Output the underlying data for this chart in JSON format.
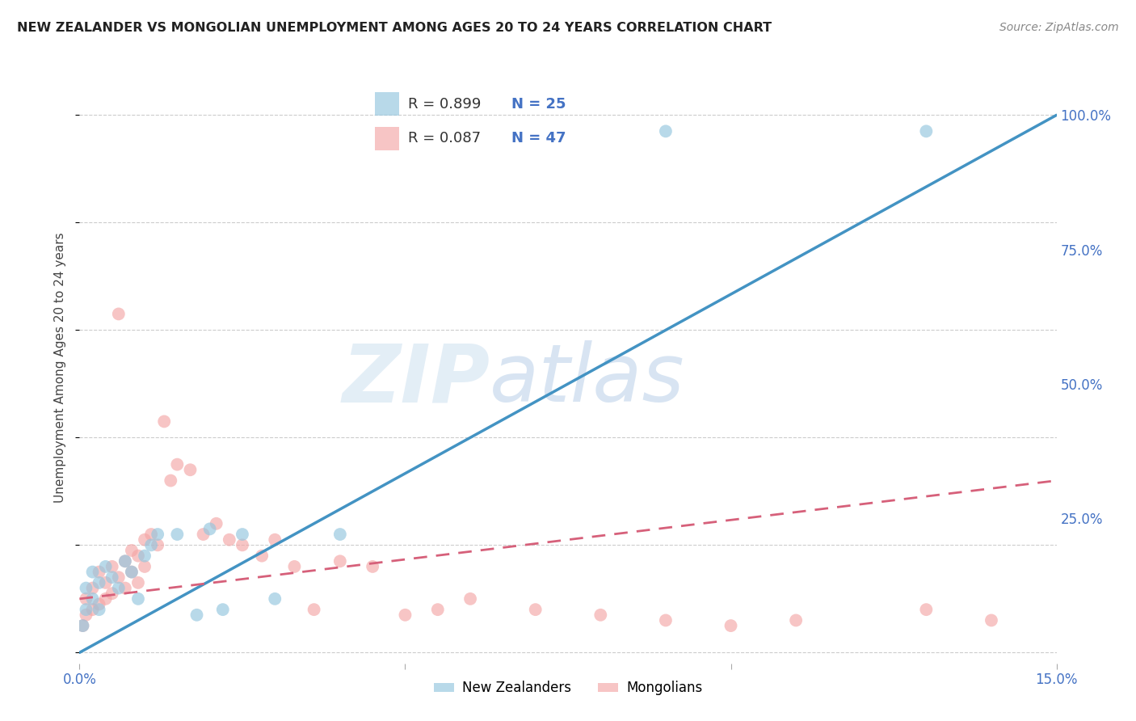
{
  "title": "NEW ZEALANDER VS MONGOLIAN UNEMPLOYMENT AMONG AGES 20 TO 24 YEARS CORRELATION CHART",
  "source": "Source: ZipAtlas.com",
  "ylabel": "Unemployment Among Ages 20 to 24 years",
  "xlim": [
    0.0,
    0.15
  ],
  "ylim": [
    -0.02,
    1.08
  ],
  "yticks_right": [
    0.0,
    0.25,
    0.5,
    0.75,
    1.0
  ],
  "yticklabels_right": [
    "",
    "25.0%",
    "50.0%",
    "75.0%",
    "100.0%"
  ],
  "watermark_zip": "ZIP",
  "watermark_atlas": "atlas",
  "legend_nz_R": "R = 0.899",
  "legend_nz_N": "N = 25",
  "legend_mn_R": "R = 0.087",
  "legend_mn_N": "N = 47",
  "nz_color": "#92c5de",
  "mn_color": "#f4a6a6",
  "nz_line_color": "#4393c3",
  "mn_line_color": "#d6607a",
  "background_color": "#ffffff",
  "grid_color": "#cccccc",
  "nz_scatter_x": [
    0.0005,
    0.001,
    0.001,
    0.002,
    0.002,
    0.003,
    0.003,
    0.004,
    0.005,
    0.006,
    0.007,
    0.008,
    0.009,
    0.01,
    0.011,
    0.012,
    0.015,
    0.018,
    0.02,
    0.022,
    0.025,
    0.03,
    0.04,
    0.09,
    0.13
  ],
  "nz_scatter_y": [
    0.05,
    0.08,
    0.12,
    0.1,
    0.15,
    0.13,
    0.08,
    0.16,
    0.14,
    0.12,
    0.17,
    0.15,
    0.1,
    0.18,
    0.2,
    0.22,
    0.22,
    0.07,
    0.23,
    0.08,
    0.22,
    0.1,
    0.22,
    0.97,
    0.97
  ],
  "mn_scatter_x": [
    0.0005,
    0.001,
    0.001,
    0.002,
    0.002,
    0.003,
    0.003,
    0.004,
    0.004,
    0.005,
    0.005,
    0.006,
    0.006,
    0.007,
    0.007,
    0.008,
    0.008,
    0.009,
    0.009,
    0.01,
    0.01,
    0.011,
    0.012,
    0.013,
    0.014,
    0.015,
    0.017,
    0.019,
    0.021,
    0.023,
    0.025,
    0.028,
    0.03,
    0.033,
    0.036,
    0.04,
    0.045,
    0.05,
    0.055,
    0.06,
    0.07,
    0.08,
    0.09,
    0.1,
    0.11,
    0.13,
    0.14
  ],
  "mn_scatter_y": [
    0.05,
    0.07,
    0.1,
    0.08,
    0.12,
    0.09,
    0.15,
    0.1,
    0.13,
    0.11,
    0.16,
    0.14,
    0.63,
    0.12,
    0.17,
    0.15,
    0.19,
    0.13,
    0.18,
    0.16,
    0.21,
    0.22,
    0.2,
    0.43,
    0.32,
    0.35,
    0.34,
    0.22,
    0.24,
    0.21,
    0.2,
    0.18,
    0.21,
    0.16,
    0.08,
    0.17,
    0.16,
    0.07,
    0.08,
    0.1,
    0.08,
    0.07,
    0.06,
    0.05,
    0.06,
    0.08,
    0.06
  ],
  "nz_line_x": [
    0.0,
    0.15
  ],
  "nz_line_y": [
    0.0,
    1.0
  ],
  "mn_line_x": [
    0.0,
    0.15
  ],
  "mn_line_y": [
    0.1,
    0.32
  ]
}
